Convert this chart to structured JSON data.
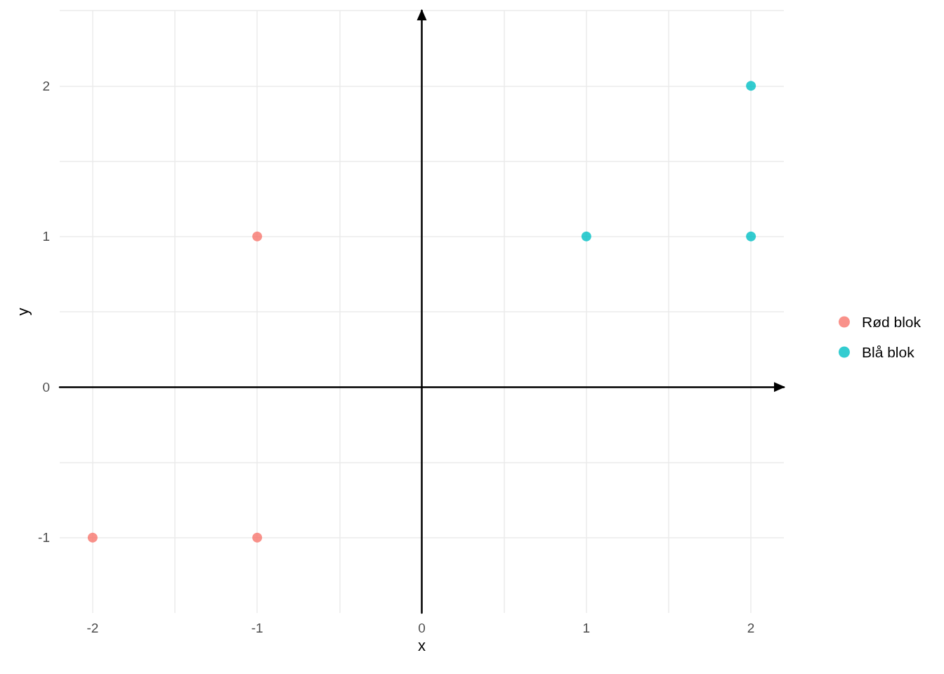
{
  "chart_data": {
    "type": "scatter",
    "xlabel": "x",
    "ylabel": "y",
    "xlim": [
      -2.2,
      2.2
    ],
    "ylim": [
      -1.5,
      2.5
    ],
    "xticks": [
      {
        "value": -1.5,
        "label": null
      },
      -2,
      -1,
      {
        "value": -0.5,
        "label": null
      },
      0,
      {
        "value": 0.5,
        "label": null
      },
      1,
      {
        "value": 1.5,
        "label": null
      },
      2
    ],
    "yticks": [
      {
        "value": -0.5,
        "label": null
      },
      -1,
      0,
      {
        "value": 0.5,
        "label": null
      },
      1,
      {
        "value": 1.5,
        "label": null
      },
      2,
      {
        "value": 2.5,
        "label": null
      }
    ],
    "series": [
      {
        "name": "Rød blok",
        "color": "#f8766d",
        "x": [
          -2,
          -1,
          -1
        ],
        "values": [
          -1,
          -1,
          1
        ]
      },
      {
        "name": "Blå blok",
        "color": "#00bfc4",
        "x": [
          1,
          2,
          2
        ],
        "values": [
          1,
          1,
          2
        ]
      }
    ],
    "grid": true,
    "legend": "right",
    "marker": "circle"
  }
}
